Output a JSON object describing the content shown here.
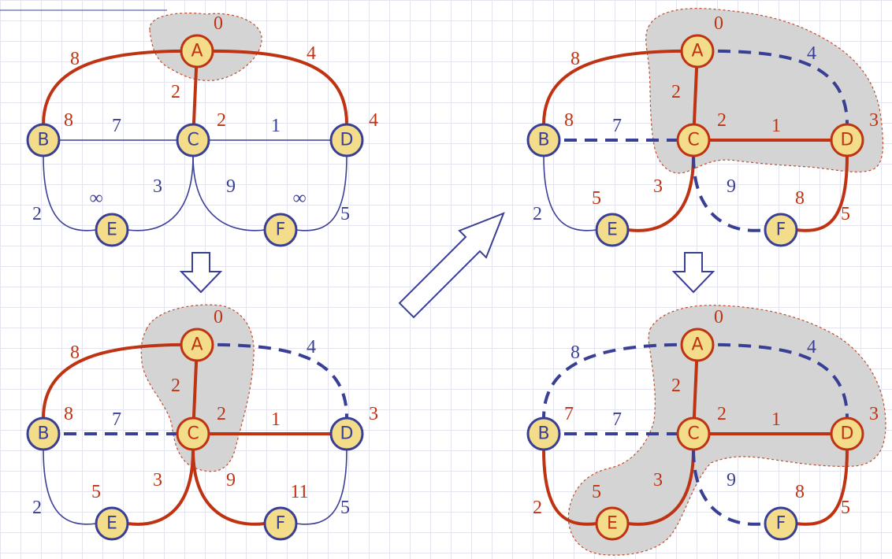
{
  "colors": {
    "tree_edge": "#bf3312",
    "plain_edge": "#3a3f96",
    "dashed_edge": "#3a3f96",
    "node_fill": "#f3dc8a",
    "node_border_plain": "#3a3f96",
    "node_border_done": "#bf3312",
    "cloud_fill": "#d4d4d4",
    "cloud_border": "#c44a2a",
    "grid": "#e4e4ee"
  },
  "panels": [
    {
      "id": "step1",
      "nodes": [
        {
          "id": "A",
          "label": "A",
          "dist": "0",
          "done": true
        },
        {
          "id": "B",
          "label": "B",
          "dist": "8",
          "done": false
        },
        {
          "id": "C",
          "label": "C",
          "dist": "2",
          "done": false
        },
        {
          "id": "D",
          "label": "D",
          "dist": "4",
          "done": false
        },
        {
          "id": "E",
          "label": "E",
          "dist": "∞",
          "done": false
        },
        {
          "id": "F",
          "label": "F",
          "dist": "∞",
          "done": false
        }
      ],
      "edges": [
        {
          "from": "A",
          "to": "B",
          "weight": "8",
          "style": "tree"
        },
        {
          "from": "A",
          "to": "C",
          "weight": "2",
          "style": "tree"
        },
        {
          "from": "A",
          "to": "D",
          "weight": "4",
          "style": "tree"
        },
        {
          "from": "B",
          "to": "C",
          "weight": "7",
          "style": "plain"
        },
        {
          "from": "C",
          "to": "D",
          "weight": "1",
          "style": "plain"
        },
        {
          "from": "B",
          "to": "E",
          "weight": "2",
          "style": "plain"
        },
        {
          "from": "C",
          "to": "E",
          "weight": "3",
          "style": "plain"
        },
        {
          "from": "C",
          "to": "F",
          "weight": "9",
          "style": "plain"
        },
        {
          "from": "D",
          "to": "F",
          "weight": "5",
          "style": "plain"
        }
      ]
    },
    {
      "id": "step2",
      "nodes": [
        {
          "id": "A",
          "label": "A",
          "dist": "0",
          "done": true
        },
        {
          "id": "B",
          "label": "B",
          "dist": "8",
          "done": false
        },
        {
          "id": "C",
          "label": "C",
          "dist": "2",
          "done": true
        },
        {
          "id": "D",
          "label": "D",
          "dist": "3",
          "done": false
        },
        {
          "id": "E",
          "label": "E",
          "dist": "5",
          "done": false
        },
        {
          "id": "F",
          "label": "F",
          "dist": "11",
          "done": false
        }
      ],
      "edges": [
        {
          "from": "A",
          "to": "B",
          "weight": "8",
          "style": "tree"
        },
        {
          "from": "A",
          "to": "C",
          "weight": "2",
          "style": "tree"
        },
        {
          "from": "A",
          "to": "D",
          "weight": "4",
          "style": "dashed"
        },
        {
          "from": "B",
          "to": "C",
          "weight": "7",
          "style": "dashed"
        },
        {
          "from": "C",
          "to": "D",
          "weight": "1",
          "style": "tree"
        },
        {
          "from": "B",
          "to": "E",
          "weight": "2",
          "style": "plain"
        },
        {
          "from": "C",
          "to": "E",
          "weight": "3",
          "style": "tree"
        },
        {
          "from": "C",
          "to": "F",
          "weight": "9",
          "style": "tree"
        },
        {
          "from": "D",
          "to": "F",
          "weight": "5",
          "style": "plain"
        }
      ]
    },
    {
      "id": "step3",
      "nodes": [
        {
          "id": "A",
          "label": "A",
          "dist": "0",
          "done": true
        },
        {
          "id": "B",
          "label": "B",
          "dist": "8",
          "done": false
        },
        {
          "id": "C",
          "label": "C",
          "dist": "2",
          "done": true
        },
        {
          "id": "D",
          "label": "D",
          "dist": "3",
          "done": true
        },
        {
          "id": "E",
          "label": "E",
          "dist": "5",
          "done": false
        },
        {
          "id": "F",
          "label": "F",
          "dist": "8",
          "done": false
        }
      ],
      "edges": [
        {
          "from": "A",
          "to": "B",
          "weight": "8",
          "style": "tree"
        },
        {
          "from": "A",
          "to": "C",
          "weight": "2",
          "style": "tree"
        },
        {
          "from": "A",
          "to": "D",
          "weight": "4",
          "style": "dashed"
        },
        {
          "from": "B",
          "to": "C",
          "weight": "7",
          "style": "dashed"
        },
        {
          "from": "C",
          "to": "D",
          "weight": "1",
          "style": "tree"
        },
        {
          "from": "B",
          "to": "E",
          "weight": "2",
          "style": "plain"
        },
        {
          "from": "C",
          "to": "E",
          "weight": "3",
          "style": "tree"
        },
        {
          "from": "C",
          "to": "F",
          "weight": "9",
          "style": "dashed"
        },
        {
          "from": "D",
          "to": "F",
          "weight": "5",
          "style": "tree"
        }
      ]
    },
    {
      "id": "step4",
      "nodes": [
        {
          "id": "A",
          "label": "A",
          "dist": "0",
          "done": true
        },
        {
          "id": "B",
          "label": "B",
          "dist": "7",
          "done": false
        },
        {
          "id": "C",
          "label": "C",
          "dist": "2",
          "done": true
        },
        {
          "id": "D",
          "label": "D",
          "dist": "3",
          "done": true
        },
        {
          "id": "E",
          "label": "E",
          "dist": "5",
          "done": true
        },
        {
          "id": "F",
          "label": "F",
          "dist": "8",
          "done": false
        }
      ],
      "edges": [
        {
          "from": "A",
          "to": "B",
          "weight": "8",
          "style": "dashed"
        },
        {
          "from": "A",
          "to": "C",
          "weight": "2",
          "style": "tree"
        },
        {
          "from": "A",
          "to": "D",
          "weight": "4",
          "style": "dashed"
        },
        {
          "from": "B",
          "to": "C",
          "weight": "7",
          "style": "dashed"
        },
        {
          "from": "C",
          "to": "D",
          "weight": "1",
          "style": "tree"
        },
        {
          "from": "B",
          "to": "E",
          "weight": "2",
          "style": "tree"
        },
        {
          "from": "C",
          "to": "E",
          "weight": "3",
          "style": "tree"
        },
        {
          "from": "C",
          "to": "F",
          "weight": "9",
          "style": "dashed"
        },
        {
          "from": "D",
          "to": "F",
          "weight": "5",
          "style": "tree"
        }
      ]
    }
  ]
}
